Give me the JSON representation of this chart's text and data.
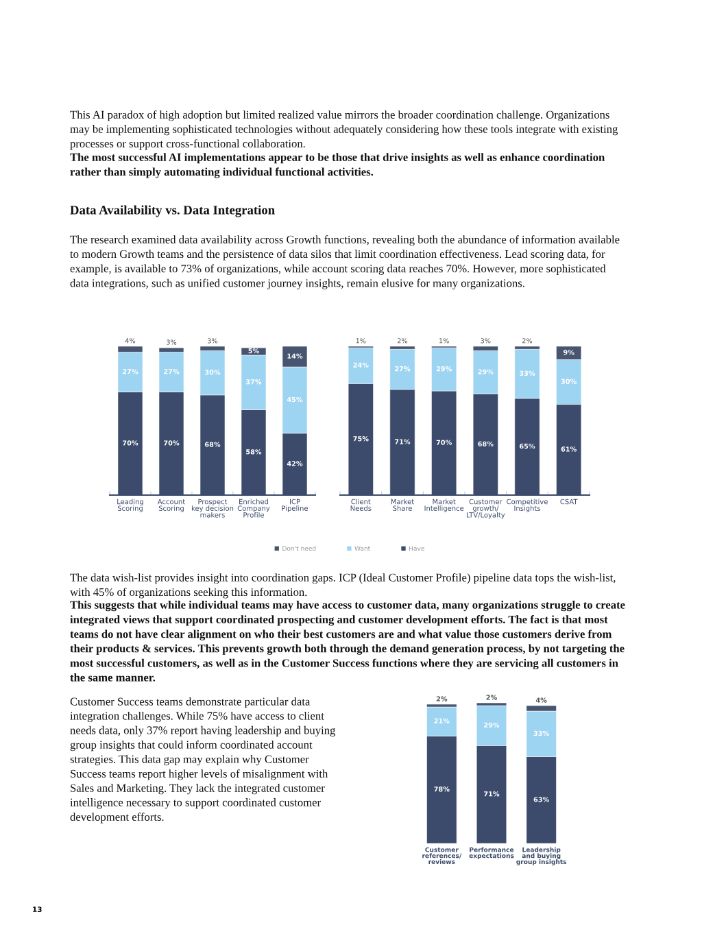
{
  "chart_data": [
    {
      "type": "bar",
      "title": "Data Availability vs. Data Integration",
      "stacked": true,
      "legend": "bottom",
      "categories": [
        "Leading\nScoring",
        "Account\nScoring",
        "Prospect\nkey decision\nmakers",
        "Enriched\nCompany\nProfile",
        "ICP\nPipeline"
      ],
      "series": [
        {
          "name": "Have",
          "color": "#3c4b6b",
          "values": [
            70,
            70,
            68,
            58,
            42
          ],
          "value_labels": [
            "70%",
            "70%",
            "68%",
            "58%",
            "42%"
          ]
        },
        {
          "name": "Want",
          "color": "#9dd4f2",
          "values": [
            27,
            27,
            30,
            37,
            45
          ],
          "value_labels": [
            "27%",
            "27%",
            "30%",
            "37%",
            "45%"
          ]
        },
        {
          "name": "Don't need",
          "color": "#485570",
          "values": [
            4,
            3,
            3,
            5,
            14
          ],
          "value_labels": [
            "4%",
            "3%",
            "3%",
            "5%",
            "14%"
          ]
        }
      ],
      "annotations": [
        "This AI paradox of high adoption but limited realized value mirrors the broader coordination challenge. Organizations may be implementing sophisticated technologies without adequately considering how these tools integrate with existing processes or support cross-functional collaboration.",
        "The most successful AI implementations appear to be those that drive insights as well as enhance coordination rather than simply automating individual functional activities.",
        "The research examined data availability across Growth functions, revealing both the abundance of information available to modern Growth teams and the persistence of data silos that limit coordination effectiveness. Lead scoring data, for example, is available to 73% of organizations, while account scoring data reaches 70%. However, more sophisticated data integrations, such as unified customer journey insights, remain elusive for many organizations."
      ]
    },
    {
      "type": "bar",
      "stacked": true,
      "categories": [
        "Client\nNeeds",
        "Market\nShare",
        "Market\nIntelligence",
        "Customer\ngrowth/\nLTV/Loyalty",
        "Competitive\nInsights",
        "CSAT"
      ],
      "series": [
        {
          "color": "#3c4b6b",
          "values": [
            75,
            71,
            70,
            68,
            65,
            61
          ],
          "value_labels": [
            "75%",
            "71%",
            "70%",
            "68%",
            "65%",
            "61%"
          ]
        },
        {
          "color": "#9dd4f2",
          "values": [
            24,
            27,
            29,
            29,
            33,
            30
          ],
          "value_labels": [
            "24%",
            "27%",
            "29%",
            "29%",
            "33%",
            "30%"
          ]
        },
        {
          "color": "#485570",
          "values": [
            1,
            2,
            1,
            3,
            2,
            9
          ],
          "value_labels": [
            "1%",
            "2%",
            "1%",
            "3%",
            "2%",
            "9%"
          ]
        }
      ]
    },
    {
      "type": "bar",
      "stacked": true,
      "categories": [
        "Customer\nreferences/\nreviews",
        "Performance\nexpectations",
        "Leadership\nand buying\ngroup insights"
      ],
      "series": [
        {
          "color": "#3c4b6b",
          "values": [
            78,
            71,
            63
          ],
          "value_labels": [
            "78%",
            "71%",
            "63%"
          ]
        },
        {
          "color": "#9dd4f2",
          "values": [
            21,
            29,
            33
          ],
          "value_labels": [
            "21%",
            "29%",
            "33%"
          ]
        },
        {
          "color": "#485570",
          "values": [
            2,
            2,
            4
          ],
          "value_labels": [
            "2%",
            "2%",
            "4%"
          ]
        }
      ],
      "annotations": [
        "The data wish-list provides insight into coordination gaps. ICP (Ideal Customer Profile) pipeline data tops the wish-list, with 45% of organizations seeking this information.",
        "This suggests that while individual teams may have access to customer data, many organizations struggle to create integrated views that support coordinated prospecting and customer development efforts. The fact is that most teams do not have clear alignment on who their best customers are and what value those customers derive from their products & services. This prevents growth both through the demand generation process, by not targeting the most successful customers, as well as in the Customer Success functions where they are servicing all customers in the same manner.",
        "Customer Success teams demonstrate particular data integration challenges. While 75% have access to client needs data, only 37% report having leadership and buying group insights that could inform coordinated account strategies. This data gap may explain why Customer Success teams report higher levels of misalignment with Sales and Marketing. They lack the integrated customer intelligence necessary to support coordinated customer development efforts.",
        "13"
      ]
    }
  ]
}
